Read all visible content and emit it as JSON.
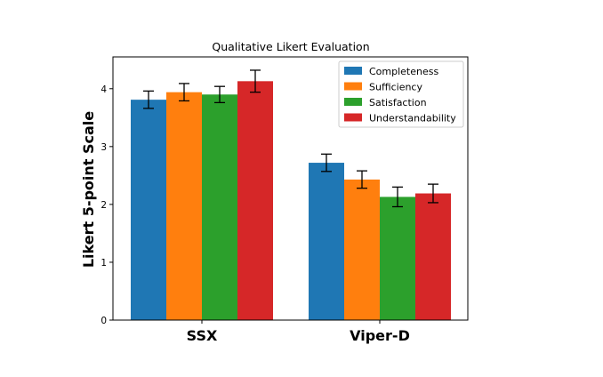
{
  "chart_data": {
    "type": "bar",
    "title": "Qualitative Likert Evaluation",
    "xlabel": "",
    "ylabel": "Likert 5-point Scale",
    "categories": [
      "SSX",
      "Viper-D"
    ],
    "ylim": [
      0,
      4.55
    ],
    "yticks": [
      0,
      1,
      2,
      3,
      4
    ],
    "legend_position": "top-right",
    "grid": false,
    "series": [
      {
        "name": "Completeness",
        "color": "#1f77b4",
        "values": [
          3.81,
          2.72
        ],
        "errors": [
          0.15,
          0.15
        ]
      },
      {
        "name": "Sufficiency",
        "color": "#ff7f0e",
        "values": [
          3.94,
          2.43
        ],
        "errors": [
          0.15,
          0.15
        ]
      },
      {
        "name": "Satisfaction",
        "color": "#2ca02c",
        "values": [
          3.9,
          2.13
        ],
        "errors": [
          0.14,
          0.17
        ]
      },
      {
        "name": "Understandability",
        "color": "#d62728",
        "values": [
          4.13,
          2.19
        ],
        "errors": [
          0.19,
          0.16
        ]
      }
    ]
  }
}
